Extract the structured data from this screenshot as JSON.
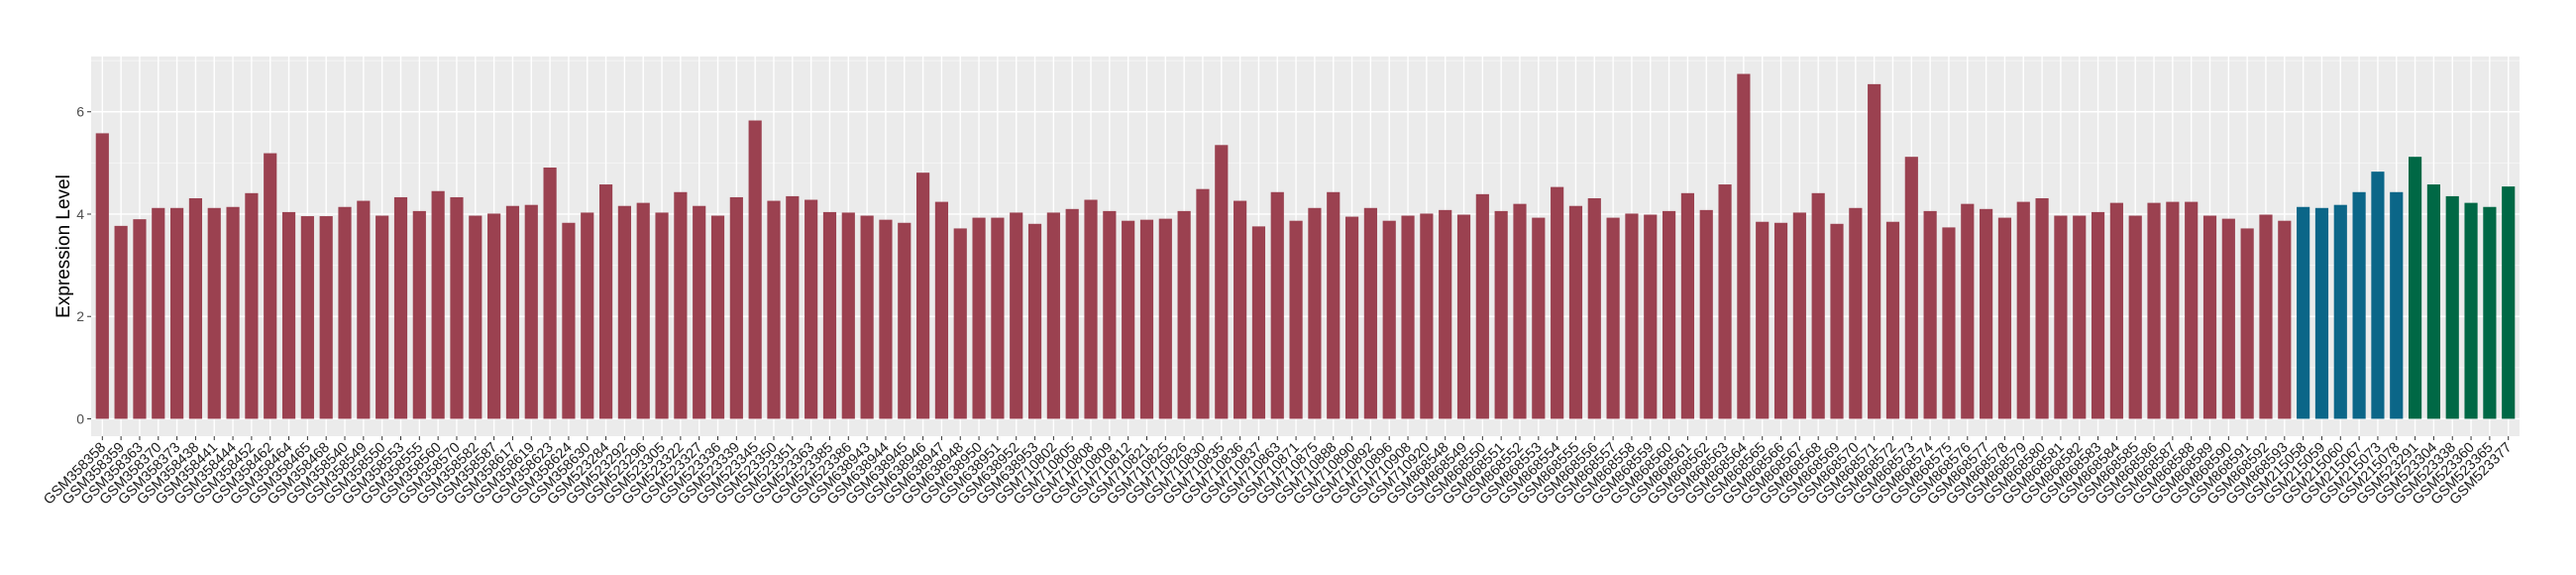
{
  "chart_data": {
    "type": "bar",
    "title": "",
    "xlabel": "",
    "ylabel": "Expression Level",
    "ylim": [
      -0.34,
      7.08
    ],
    "yticks": [
      0,
      2,
      4,
      6
    ],
    "grid": true,
    "legend": "none",
    "group_colors": [
      "#9B4150",
      "#0B6688",
      "#006845"
    ],
    "categories": [
      "GSM358358",
      "GSM358359",
      "GSM358363",
      "GSM358370",
      "GSM358373",
      "GSM358438",
      "GSM358441",
      "GSM358444",
      "GSM358452",
      "GSM358462",
      "GSM358464",
      "GSM358465",
      "GSM358468",
      "GSM358540",
      "GSM358549",
      "GSM358550",
      "GSM358553",
      "GSM358555",
      "GSM358560",
      "GSM358570",
      "GSM358582",
      "GSM358587",
      "GSM358617",
      "GSM358619",
      "GSM358623",
      "GSM358624",
      "GSM358630",
      "GSM523284",
      "GSM523292",
      "GSM523296",
      "GSM523305",
      "GSM523322",
      "GSM523327",
      "GSM523336",
      "GSM523339",
      "GSM523345",
      "GSM523350",
      "GSM523351",
      "GSM523363",
      "GSM523385",
      "GSM523386",
      "GSM638943",
      "GSM638944",
      "GSM638945",
      "GSM638946",
      "GSM638947",
      "GSM638948",
      "GSM638950",
      "GSM638951",
      "GSM638952",
      "GSM638953",
      "GSM710802",
      "GSM710805",
      "GSM710808",
      "GSM710809",
      "GSM710812",
      "GSM710821",
      "GSM710825",
      "GSM710826",
      "GSM710830",
      "GSM710835",
      "GSM710836",
      "GSM710837",
      "GSM710863",
      "GSM710871",
      "GSM710875",
      "GSM710888",
      "GSM710890",
      "GSM710892",
      "GSM710896",
      "GSM710908",
      "GSM710920",
      "GSM868548",
      "GSM868549",
      "GSM868550",
      "GSM868551",
      "GSM868552",
      "GSM868553",
      "GSM868554",
      "GSM868555",
      "GSM868556",
      "GSM868557",
      "GSM868558",
      "GSM868559",
      "GSM868560",
      "GSM868561",
      "GSM868562",
      "GSM868563",
      "GSM868564",
      "GSM868565",
      "GSM868566",
      "GSM868567",
      "GSM868568",
      "GSM868569",
      "GSM868570",
      "GSM868571",
      "GSM868572",
      "GSM868573",
      "GSM868574",
      "GSM868575",
      "GSM868576",
      "GSM868577",
      "GSM868578",
      "GSM868579",
      "GSM868580",
      "GSM868581",
      "GSM868582",
      "GSM868583",
      "GSM868584",
      "GSM868585",
      "GSM868586",
      "GSM868587",
      "GSM868588",
      "GSM868589",
      "GSM868590",
      "GSM868591",
      "GSM868592",
      "GSM868593",
      "GSM215058",
      "GSM215059",
      "GSM215060",
      "GSM215067",
      "GSM215073",
      "GSM215078",
      "GSM523291",
      "GSM523304",
      "GSM523338",
      "GSM523360",
      "GSM523365",
      "GSM523377"
    ],
    "values": [
      5.58,
      3.77,
      3.9,
      4.12,
      4.12,
      4.31,
      4.12,
      4.14,
      4.41,
      5.19,
      4.04,
      3.96,
      3.96,
      4.14,
      4.26,
      3.97,
      4.33,
      4.06,
      4.45,
      4.33,
      3.97,
      4.01,
      4.16,
      4.18,
      4.91,
      3.83,
      4.03,
      4.58,
      4.16,
      4.22,
      4.03,
      4.43,
      4.16,
      3.97,
      4.33,
      5.83,
      4.26,
      4.35,
      4.28,
      4.04,
      4.03,
      3.97,
      3.89,
      3.83,
      4.81,
      4.24,
      3.72,
      3.93,
      3.93,
      4.03,
      3.81,
      4.03,
      4.1,
      4.28,
      4.06,
      3.87,
      3.89,
      3.91,
      4.06,
      4.49,
      5.35,
      4.26,
      3.76,
      4.43,
      3.87,
      4.12,
      4.43,
      3.95,
      4.12,
      3.87,
      3.97,
      4.01,
      4.08,
      3.99,
      4.39,
      4.06,
      4.2,
      3.93,
      4.53,
      4.16,
      4.31,
      3.93,
      4.01,
      3.99,
      4.06,
      4.41,
      4.08,
      4.58,
      6.74,
      3.85,
      3.83,
      4.03,
      4.41,
      3.81,
      4.12,
      6.54,
      3.85,
      5.12,
      4.06,
      3.74,
      4.2,
      4.1,
      3.93,
      4.24,
      4.31,
      3.97,
      3.97,
      4.04,
      4.22,
      3.97,
      4.22,
      4.24,
      4.24,
      3.97,
      3.91,
      3.72,
      3.99,
      3.87,
      4.14,
      4.12,
      4.18,
      4.43,
      4.83,
      4.43,
      5.12,
      4.58,
      4.35,
      4.22,
      4.14,
      4.54
    ],
    "group": [
      0,
      0,
      0,
      0,
      0,
      0,
      0,
      0,
      0,
      0,
      0,
      0,
      0,
      0,
      0,
      0,
      0,
      0,
      0,
      0,
      0,
      0,
      0,
      0,
      0,
      0,
      0,
      0,
      0,
      0,
      0,
      0,
      0,
      0,
      0,
      0,
      0,
      0,
      0,
      0,
      0,
      0,
      0,
      0,
      0,
      0,
      0,
      0,
      0,
      0,
      0,
      0,
      0,
      0,
      0,
      0,
      0,
      0,
      0,
      0,
      0,
      0,
      0,
      0,
      0,
      0,
      0,
      0,
      0,
      0,
      0,
      0,
      0,
      0,
      0,
      0,
      0,
      0,
      0,
      0,
      0,
      0,
      0,
      0,
      0,
      0,
      0,
      0,
      0,
      0,
      0,
      0,
      0,
      0,
      0,
      0,
      0,
      0,
      0,
      0,
      0,
      0,
      0,
      0,
      0,
      0,
      0,
      0,
      0,
      0,
      0,
      0,
      0,
      0,
      0,
      0,
      0,
      0,
      1,
      1,
      1,
      1,
      1,
      1,
      2,
      2,
      2,
      2,
      2,
      2
    ]
  }
}
